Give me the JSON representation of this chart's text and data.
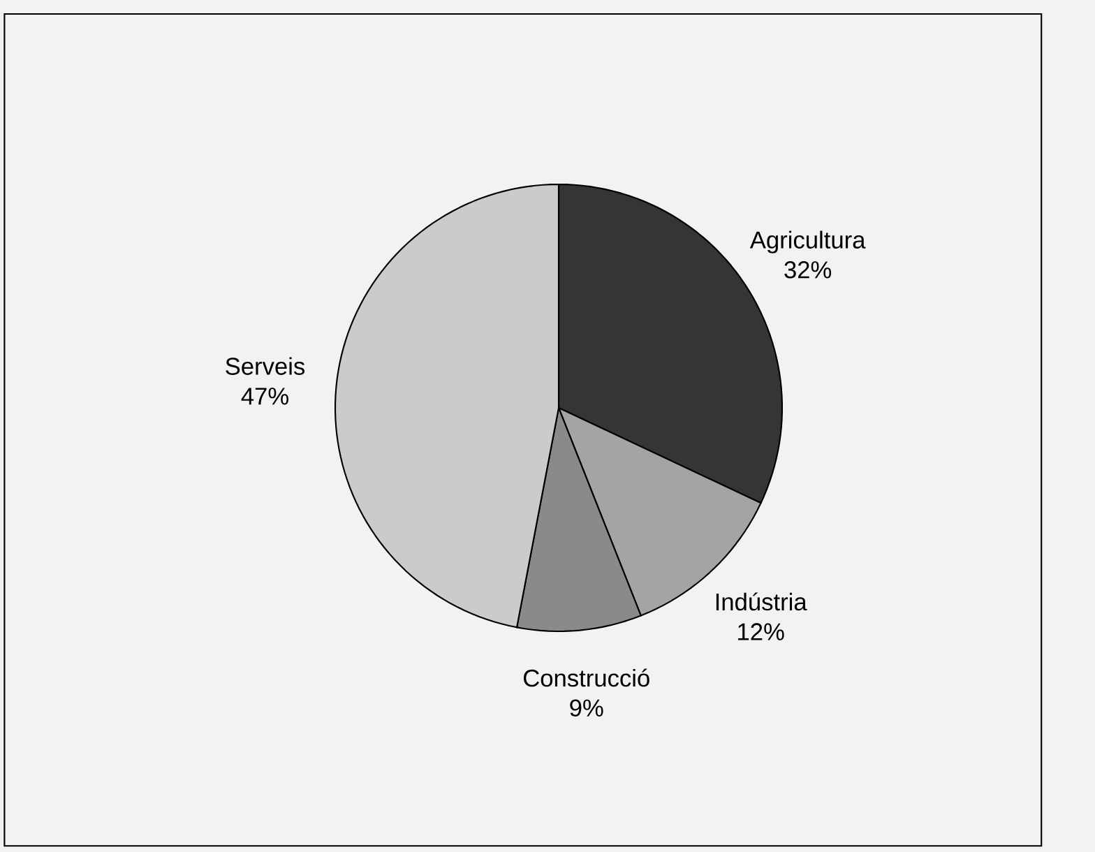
{
  "chart_data": {
    "type": "pie",
    "categories": [
      "Agricultura",
      "Indústria",
      "Construcció",
      "Serveis"
    ],
    "values": [
      32,
      12,
      9,
      47
    ],
    "value_labels": [
      "32%",
      "12%",
      "9%",
      "47%"
    ],
    "colors": [
      "#353535",
      "#a4a4a4",
      "#8a8a8a",
      "#cbcbcb"
    ]
  }
}
